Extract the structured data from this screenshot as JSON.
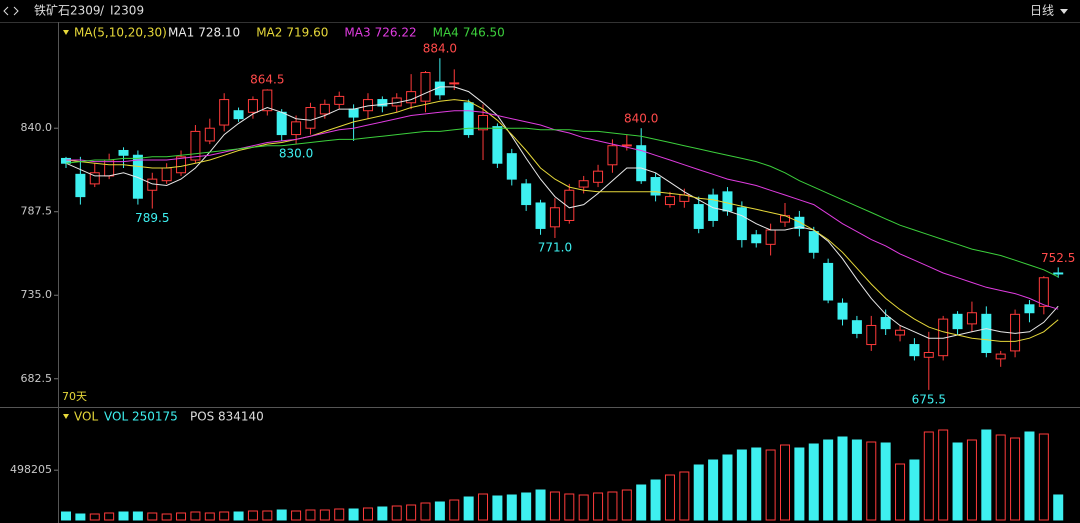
{
  "chart_data": {
    "type": "candlestick",
    "title": "铁矿石2309",
    "separator": "/",
    "code": "I2309",
    "period": "日线",
    "count_label": "70天",
    "indicator_title": "MA(5,10,20,30)",
    "ylim": [
      666,
      903
    ],
    "yticks": [
      {
        "value": 682.5,
        "label": "682.5"
      },
      {
        "value": 735,
        "label": "735.0"
      },
      {
        "value": 787.5,
        "label": "787.5"
      },
      {
        "value": 840,
        "label": "840.0"
      }
    ],
    "up_color": "#ff3b3b",
    "down_color": "#3ef0f0",
    "open": [
      821,
      811,
      805,
      810,
      826,
      823,
      801,
      807,
      812,
      820,
      832,
      842,
      851,
      850,
      851,
      850,
      836,
      840,
      849,
      855,
      852,
      851,
      858,
      854,
      856,
      857,
      869,
      868,
      856,
      839,
      841,
      824,
      805,
      793,
      778,
      782,
      803,
      806,
      817,
      829,
      829,
      809,
      792,
      794,
      792,
      798,
      800,
      790,
      773,
      767,
      781,
      784,
      775,
      755,
      730,
      719,
      704,
      721,
      710,
      704,
      696,
      697,
      723,
      717,
      723,
      695,
      700,
      729,
      728,
      749
    ],
    "high": [
      822,
      822,
      818,
      824,
      828,
      826,
      812,
      818,
      826,
      842,
      846,
      862,
      853,
      860,
      864.5,
      852,
      848,
      856,
      858,
      863,
      855,
      862,
      860,
      862,
      874,
      876,
      884,
      877,
      858,
      855,
      843,
      827,
      808,
      795,
      796,
      805,
      810,
      817,
      833,
      836,
      840,
      812,
      800,
      802,
      797,
      802,
      803,
      794,
      776,
      780,
      793,
      788,
      778,
      758,
      733,
      722,
      722,
      726,
      716,
      708,
      712,
      722,
      725,
      731,
      728,
      700,
      726,
      732,
      747,
      752.5
    ],
    "low": [
      815,
      792,
      803,
      808,
      815,
      792,
      789.5,
      805,
      810,
      818,
      830,
      838,
      844,
      846,
      848,
      832,
      830,
      836,
      846,
      852,
      832,
      846,
      850,
      850,
      852,
      850,
      858,
      864,
      834,
      820,
      815,
      804,
      788,
      773,
      771,
      780,
      799,
      803,
      812,
      826,
      805,
      794,
      790,
      790,
      774,
      778,
      785,
      765,
      765,
      760,
      778,
      772,
      758,
      730,
      716,
      708,
      700,
      710,
      706,
      694,
      675.5,
      694,
      710,
      712,
      696,
      690,
      696,
      718,
      723,
      746
    ],
    "close": [
      818,
      797,
      812,
      820,
      823,
      796,
      808,
      815,
      822,
      838,
      840,
      858,
      846,
      858,
      864,
      836,
      844,
      853,
      855,
      860,
      847,
      858,
      854,
      859,
      863,
      875,
      861,
      868.5,
      836,
      848,
      818,
      808,
      792,
      777,
      790,
      801,
      807,
      813,
      829,
      829.5,
      807,
      798,
      797,
      798,
      777,
      782,
      788,
      770,
      768,
      776,
      785,
      777,
      762,
      732,
      720,
      711,
      716,
      714,
      713,
      697,
      699,
      720,
      714,
      724,
      699,
      698,
      723,
      724,
      746,
      748.5
    ],
    "high_labels": [
      null,
      null,
      null,
      null,
      null,
      null,
      null,
      null,
      null,
      null,
      null,
      null,
      null,
      null,
      "864.5",
      null,
      null,
      null,
      null,
      null,
      null,
      null,
      null,
      null,
      null,
      null,
      "884.0",
      null,
      null,
      null,
      null,
      null,
      null,
      null,
      null,
      null,
      null,
      null,
      null,
      null,
      "840.0",
      null,
      null,
      null,
      null,
      null,
      null,
      null,
      null,
      null,
      null,
      null,
      null,
      null,
      null,
      null,
      null,
      null,
      null,
      null,
      null,
      null,
      null,
      null,
      null,
      null,
      null,
      null,
      null,
      "752.5"
    ],
    "low_labels": [
      null,
      null,
      null,
      null,
      null,
      null,
      "789.5",
      null,
      null,
      null,
      null,
      null,
      null,
      null,
      null,
      null,
      "830.0",
      null,
      null,
      null,
      null,
      null,
      null,
      null,
      null,
      null,
      null,
      null,
      null,
      null,
      null,
      null,
      null,
      null,
      "771.0",
      null,
      null,
      null,
      null,
      null,
      null,
      null,
      null,
      null,
      null,
      null,
      null,
      null,
      null,
      null,
      null,
      null,
      null,
      null,
      null,
      null,
      null,
      null,
      null,
      null,
      "675.5",
      null,
      null,
      null,
      null,
      null,
      null,
      null,
      null,
      null
    ],
    "ma": [
      {
        "name": "MA1",
        "last_label": "728.10",
        "color": "#e8e8e8",
        "values": [
          818,
          814,
          810,
          810,
          812,
          809,
          805,
          804,
          808,
          815,
          825,
          836,
          843,
          849,
          853,
          850,
          846,
          845,
          848,
          852,
          852,
          854,
          855,
          856,
          858,
          862,
          866,
          866,
          863,
          856,
          848,
          835,
          821,
          808,
          797,
          790,
          792,
          799,
          807,
          815,
          815,
          812,
          806,
          800,
          795,
          790,
          788,
          785,
          780,
          776,
          776,
          778,
          776,
          769,
          758,
          745,
          733,
          723,
          716,
          712,
          708,
          708,
          710,
          712,
          714,
          712,
          711,
          712,
          718,
          728.1
        ]
      },
      {
        "name": "MA2",
        "last_label": "719.60",
        "color": "#e6d83a",
        "values": [
          820,
          819,
          818,
          817,
          817,
          816,
          815,
          815,
          816,
          818,
          820,
          823,
          826,
          828,
          830,
          831,
          833,
          835,
          838,
          841,
          844,
          846,
          848,
          850,
          853,
          855,
          857,
          858,
          857,
          852,
          845,
          836,
          826,
          815,
          808,
          803,
          801,
          800,
          800,
          800,
          800,
          800,
          799,
          798,
          796,
          795,
          793,
          791,
          789,
          787,
          785,
          781,
          776,
          770,
          762,
          752,
          742,
          733,
          726,
          720,
          715,
          712,
          710,
          708,
          707,
          706,
          706,
          708,
          712,
          719.6
        ]
      },
      {
        "name": "MA3",
        "last_label": "726.22",
        "color": "#e03ce0",
        "values": [
          820,
          820,
          819,
          819,
          819,
          820,
          820,
          820,
          821,
          822,
          823,
          825,
          827,
          829,
          831,
          832,
          833,
          835,
          837,
          839,
          840,
          842,
          844,
          846,
          848,
          849,
          850,
          851,
          851,
          850,
          848,
          846,
          844,
          842,
          839,
          837,
          834,
          832,
          830,
          828,
          826,
          823,
          820,
          817,
          814,
          811,
          808,
          806,
          804,
          801,
          798,
          795,
          792,
          786,
          780,
          775,
          770,
          766,
          761,
          757,
          753,
          749,
          746,
          743,
          740,
          738,
          736,
          733,
          729,
          726.22
        ]
      },
      {
        "name": "MA4",
        "last_label": "746.50",
        "color": "#3ccf3c",
        "values": [
          818,
          819,
          820,
          820,
          821,
          821,
          822,
          822,
          823,
          824,
          825,
          826,
          827,
          828,
          829,
          829,
          830,
          831,
          832,
          833,
          833,
          834,
          835,
          836,
          837,
          838,
          838,
          839,
          840,
          840,
          840,
          840,
          840,
          839,
          839,
          839,
          838,
          838,
          837,
          836,
          835,
          833,
          831,
          829,
          827,
          825,
          823,
          821,
          819,
          816,
          812,
          807,
          803,
          799,
          795,
          791,
          787,
          783,
          779,
          776,
          773,
          770,
          767,
          764,
          762,
          760,
          757,
          754,
          751,
          746.5
        ]
      }
    ],
    "volume": {
      "title": "VOL",
      "name": "VOL",
      "last_label": "250175",
      "pos_name": "POS",
      "pos_label": "834140",
      "ylim": [
        0,
        1100000
      ],
      "yticks": [
        498205
      ],
      "values": [
        80000,
        60000,
        60000,
        70000,
        80000,
        80000,
        70000,
        60000,
        70000,
        80000,
        70000,
        80000,
        80000,
        90000,
        90000,
        100000,
        90000,
        100000,
        100000,
        110000,
        110000,
        120000,
        130000,
        140000,
        150000,
        170000,
        180000,
        200000,
        230000,
        260000,
        240000,
        250000,
        270000,
        300000,
        280000,
        260000,
        250000,
        270000,
        280000,
        300000,
        350000,
        400000,
        450000,
        480000,
        550000,
        600000,
        650000,
        700000,
        720000,
        700000,
        750000,
        720000,
        760000,
        800000,
        830000,
        800000,
        780000,
        770000,
        560000,
        600000,
        880000,
        900000,
        770000,
        800000,
        900000,
        850000,
        820000,
        880000,
        860000,
        250175
      ]
    }
  }
}
